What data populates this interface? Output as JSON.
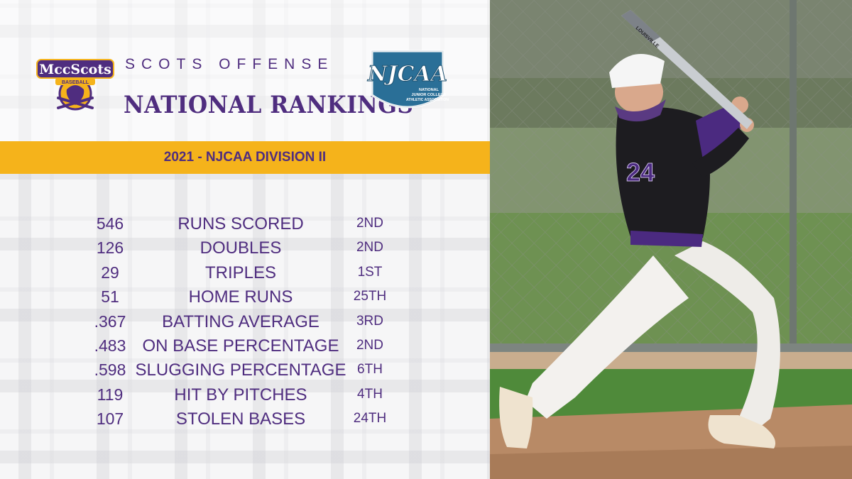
{
  "header": {
    "subtitle": "SCOTS OFFENSE",
    "title": "NATIONAL RANKINGS"
  },
  "logos": {
    "mcc_text": "MccScots",
    "mcc_sub": "BASEBALL",
    "njcaa_text": "NJCAA",
    "njcaa_sub1": "NATIONAL",
    "njcaa_sub2": "JUNIOR COLLEGE",
    "njcaa_sub3": "ATHLETIC ASSOCIATION"
  },
  "banner": "2021 - NJCAA DIVISION II",
  "stats": [
    {
      "value": "546",
      "label": "RUNS SCORED",
      "rank": "2ND"
    },
    {
      "value": "126",
      "label": "DOUBLES",
      "rank": "2ND"
    },
    {
      "value": "29",
      "label": "TRIPLES",
      "rank": "1ST"
    },
    {
      "value": "51",
      "label": "HOME RUNS",
      "rank": "25TH"
    },
    {
      "value": ".367",
      "label": "BATTING AVERAGE",
      "rank": "3RD"
    },
    {
      "value": ".483",
      "label": "ON BASE PERCENTAGE",
      "rank": "2ND"
    },
    {
      "value": ".598",
      "label": "SLUGGING PERCENTAGE",
      "rank": "6TH"
    },
    {
      "value": "119",
      "label": "HIT BY PITCHES",
      "rank": "4TH"
    },
    {
      "value": "107",
      "label": "STOLEN BASES",
      "rank": "24TH"
    }
  ],
  "photo": {
    "jersey_number": "24",
    "bat_brand": "LOUISVILLE"
  },
  "colors": {
    "purple": "#4f2d7f",
    "gold": "#f5b31b",
    "njcaa_blue": "#2a6f97"
  }
}
